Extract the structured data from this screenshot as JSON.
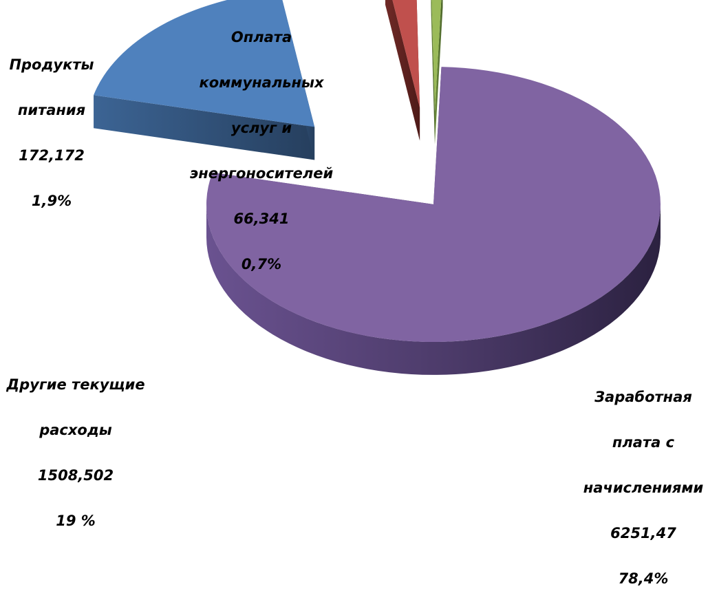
{
  "chart_data": {
    "type": "pie",
    "title": "",
    "categories": [
      "Заработная плата с начислениями",
      "Другие текущие расходы",
      "Продукты питания",
      "Оплата коммунальных услуг и энергоносителей"
    ],
    "values": [
      6251.47,
      1508.502,
      172.172,
      66.341
    ],
    "percents": [
      78.4,
      19,
      1.9,
      0.7
    ],
    "colors": [
      "#8064A2",
      "#4F81BD",
      "#C0504D",
      "#9BBB59"
    ],
    "style": "3d-exploded",
    "legend": "none",
    "labels": [
      {
        "lines": [
          "Заработная",
          "плата с",
          "начислениями"
        ],
        "value": "6251,47",
        "percent": "78,4%"
      },
      {
        "lines": [
          "Другие текущие",
          "расходы"
        ],
        "value": "1508,502",
        "percent": "19 %"
      },
      {
        "lines": [
          "Продукты",
          "питания"
        ],
        "value": "172,172",
        "percent": "1,9%"
      },
      {
        "lines": [
          "Оплата",
          "коммунальных",
          "услуг и",
          "энергоносителей"
        ],
        "value": "66,341",
        "percent": "0,7%"
      }
    ]
  }
}
